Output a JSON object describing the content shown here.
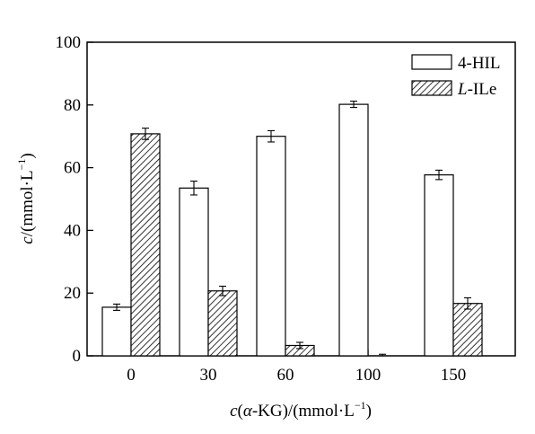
{
  "chart_data": {
    "type": "bar",
    "categories": [
      "0",
      "30",
      "60",
      "100",
      "150"
    ],
    "series": [
      {
        "name": "4-HIL",
        "values": [
          15.5,
          53.5,
          70.0,
          80.2,
          57.7
        ],
        "errors": [
          1.0,
          2.2,
          1.8,
          1.0,
          1.5
        ],
        "fill": "open"
      },
      {
        "name": "L-ILe",
        "values": [
          70.8,
          20.7,
          3.3,
          0.0,
          16.7
        ],
        "errors": [
          1.8,
          1.5,
          1.0,
          0.5,
          1.8
        ],
        "fill": "hatched"
      }
    ],
    "yticks": [
      "0",
      "20",
      "40",
      "60",
      "80",
      "100"
    ],
    "ylim": [
      0,
      100
    ],
    "ylabel": {
      "italic": "c",
      "rest": "/(mmol·L",
      "sup": "−1",
      "close": ")"
    },
    "xlabel": {
      "italic_c": "c",
      "open": "(",
      "italic_alpha": "α",
      "mid": "-KG)/(mmol·L",
      "sup": "−1",
      "close": ")"
    },
    "legend": {
      "position": "top-right",
      "entries": [
        {
          "prefix": "",
          "italic": "",
          "text": "4-HIL"
        },
        {
          "prefix": "",
          "italic": "L",
          "text": "-ILe"
        }
      ]
    },
    "grid": false,
    "colors": {
      "bar_stroke": "#000000",
      "hatch": "#000000",
      "open_fill": "#ffffff"
    }
  }
}
